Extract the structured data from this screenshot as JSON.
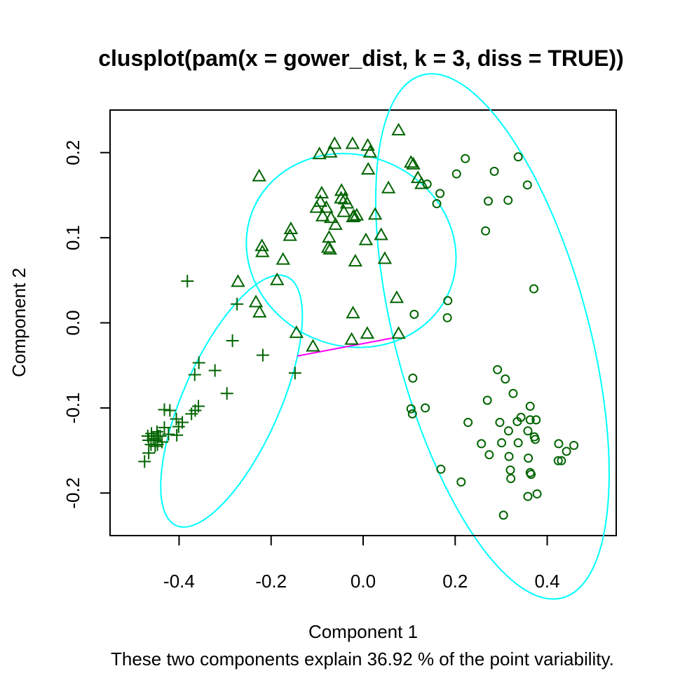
{
  "chart_data": {
    "type": "scatter",
    "title": "clusplot(pam(x = gower_dist, k = 3, diss = TRUE))",
    "xlabel": "Component 1",
    "ylabel": "Component 2",
    "subtitle": "These two components explain 36.92 % of the point variability.",
    "xlim": [
      -0.55,
      0.55
    ],
    "ylim": [
      -0.25,
      0.25
    ],
    "x_ticks": [
      -0.4,
      -0.2,
      0.0,
      0.2,
      0.4
    ],
    "x_tick_labels": [
      "-0.4",
      "-0.2",
      "0.0",
      "0.2",
      "0.4"
    ],
    "y_ticks": [
      -0.2,
      -0.1,
      0.0,
      0.1,
      0.2
    ],
    "y_tick_labels": [
      "-0.2",
      "-0.1",
      "0.0",
      "0.1",
      "0.2"
    ],
    "grid": false,
    "colors": {
      "points": "#006400",
      "ellipse": "#00FFFF",
      "connector": "#FF00FF",
      "frame": "#000000"
    },
    "series": [
      {
        "marker": "plus",
        "points": [
          [
            -0.382,
            0.049
          ],
          [
            -0.274,
            0.022
          ],
          [
            -0.284,
            -0.021
          ],
          [
            -0.218,
            -0.038
          ],
          [
            -0.148,
            -0.059
          ],
          [
            -0.296,
            -0.083
          ],
          [
            -0.322,
            -0.056
          ],
          [
            -0.357,
            -0.047
          ],
          [
            -0.366,
            -0.061
          ],
          [
            -0.358,
            -0.098
          ],
          [
            -0.365,
            -0.103
          ],
          [
            -0.373,
            -0.107
          ],
          [
            -0.432,
            -0.102
          ],
          [
            -0.42,
            -0.103
          ],
          [
            -0.406,
            -0.113
          ],
          [
            -0.393,
            -0.117
          ],
          [
            -0.401,
            -0.122
          ],
          [
            -0.405,
            -0.132
          ],
          [
            -0.432,
            -0.123
          ],
          [
            -0.423,
            -0.131
          ],
          [
            -0.441,
            -0.133
          ],
          [
            -0.468,
            -0.133
          ],
          [
            -0.466,
            -0.138
          ],
          [
            -0.461,
            -0.143
          ],
          [
            -0.452,
            -0.138
          ],
          [
            -0.447,
            -0.143
          ],
          [
            -0.437,
            -0.14
          ],
          [
            -0.445,
            -0.133
          ],
          [
            -0.452,
            -0.145
          ],
          [
            -0.466,
            -0.153
          ],
          [
            -0.475,
            -0.163
          ],
          [
            -0.456,
            -0.136
          ],
          [
            -0.448,
            -0.128
          ],
          [
            -0.46,
            -0.13
          ]
        ]
      },
      {
        "marker": "triangle",
        "points": [
          [
            0.077,
            0.226
          ],
          [
            -0.226,
            0.172
          ],
          [
            -0.062,
            0.21
          ],
          [
            -0.023,
            0.21
          ],
          [
            0.01,
            0.208
          ],
          [
            0.015,
            0.2
          ],
          [
            -0.095,
            0.198
          ],
          [
            -0.071,
            0.2
          ],
          [
            0.104,
            0.188
          ],
          [
            0.011,
            0.18
          ],
          [
            0.109,
            0.186
          ],
          [
            0.119,
            0.17
          ],
          [
            0.127,
            0.163
          ],
          [
            0.055,
            0.158
          ],
          [
            -0.047,
            0.155
          ],
          [
            -0.09,
            0.152
          ],
          [
            -0.04,
            0.145
          ],
          [
            -0.093,
            0.142
          ],
          [
            -0.035,
            0.14
          ],
          [
            -0.101,
            0.135
          ],
          [
            -0.08,
            0.135
          ],
          [
            -0.042,
            0.13
          ],
          [
            -0.014,
            0.126
          ],
          [
            0.026,
            0.127
          ],
          [
            -0.022,
            0.124
          ],
          [
            -0.07,
            0.123
          ],
          [
            -0.088,
            0.125
          ],
          [
            -0.06,
            0.115
          ],
          [
            -0.02,
            0.125
          ],
          [
            -0.157,
            0.11
          ],
          [
            -0.159,
            0.102
          ],
          [
            0.039,
            0.103
          ],
          [
            0.006,
            0.097
          ],
          [
            -0.074,
            0.1
          ],
          [
            -0.076,
            0.088
          ],
          [
            -0.072,
            0.086
          ],
          [
            -0.22,
            0.09
          ],
          [
            -0.219,
            0.083
          ],
          [
            -0.174,
            0.074
          ],
          [
            -0.017,
            0.072
          ],
          [
            0.047,
            0.075
          ],
          [
            -0.187,
            0.05
          ],
          [
            -0.272,
            0.048
          ],
          [
            -0.233,
            0.024
          ],
          [
            -0.225,
            0.012
          ],
          [
            -0.022,
            0.011
          ],
          [
            0.073,
            0.029
          ],
          [
            -0.145,
            -0.012
          ],
          [
            -0.109,
            -0.028
          ],
          [
            -0.025,
            -0.02
          ],
          [
            0.009,
            -0.013
          ],
          [
            0.077,
            -0.013
          ],
          [
            -0.048,
            0.146
          ]
        ]
      },
      {
        "marker": "circle",
        "points": [
          [
            0.337,
            0.195
          ],
          [
            0.222,
            0.193
          ],
          [
            0.285,
            0.178
          ],
          [
            0.203,
            0.175
          ],
          [
            0.357,
            0.162
          ],
          [
            0.139,
            0.163
          ],
          [
            0.167,
            0.152
          ],
          [
            0.16,
            0.14
          ],
          [
            0.272,
            0.143
          ],
          [
            0.315,
            0.144
          ],
          [
            0.266,
            0.108
          ],
          [
            0.371,
            0.04
          ],
          [
            0.184,
            0.026
          ],
          [
            0.183,
            0.006
          ],
          [
            0.111,
            0.01
          ],
          [
            0.292,
            -0.055
          ],
          [
            0.309,
            -0.066
          ],
          [
            0.108,
            -0.065
          ],
          [
            0.326,
            -0.083
          ],
          [
            0.27,
            -0.091
          ],
          [
            0.363,
            -0.098
          ],
          [
            0.104,
            -0.101
          ],
          [
            0.135,
            -0.1
          ],
          [
            0.107,
            -0.107
          ],
          [
            0.343,
            -0.111
          ],
          [
            0.228,
            -0.117
          ],
          [
            0.297,
            -0.117
          ],
          [
            0.335,
            -0.116
          ],
          [
            0.363,
            -0.114
          ],
          [
            0.376,
            -0.114
          ],
          [
            0.316,
            -0.127
          ],
          [
            0.358,
            -0.127
          ],
          [
            0.372,
            -0.134
          ],
          [
            0.374,
            -0.137
          ],
          [
            0.337,
            -0.141
          ],
          [
            0.257,
            -0.142
          ],
          [
            0.301,
            -0.141
          ],
          [
            0.425,
            -0.142
          ],
          [
            0.458,
            -0.144
          ],
          [
            0.442,
            -0.151
          ],
          [
            0.274,
            -0.155
          ],
          [
            0.317,
            -0.157
          ],
          [
            0.359,
            -0.159
          ],
          [
            0.424,
            -0.162
          ],
          [
            0.431,
            -0.162
          ],
          [
            0.169,
            -0.172
          ],
          [
            0.32,
            -0.173
          ],
          [
            0.363,
            -0.176
          ],
          [
            0.365,
            -0.178
          ],
          [
            0.321,
            -0.183
          ],
          [
            0.213,
            -0.187
          ],
          [
            0.378,
            -0.201
          ],
          [
            0.358,
            -0.204
          ],
          [
            0.305,
            -0.226
          ]
        ]
      }
    ],
    "ellipses": [
      {
        "cx": -0.286,
        "cy": -0.092,
        "rx": 0.105,
        "ry": 0.16,
        "angle": 24
      },
      {
        "cx": -0.026,
        "cy": 0.085,
        "rx": 0.231,
        "ry": 0.112,
        "angle": 22
      },
      {
        "cx": 0.281,
        "cy": -0.016,
        "rx": 0.21,
        "ry": 0.318,
        "angle": -15
      }
    ],
    "connectors": [
      {
        "x1": -0.143,
        "y1": -0.039,
        "x2": 0.062,
        "y2": -0.018
      }
    ]
  }
}
